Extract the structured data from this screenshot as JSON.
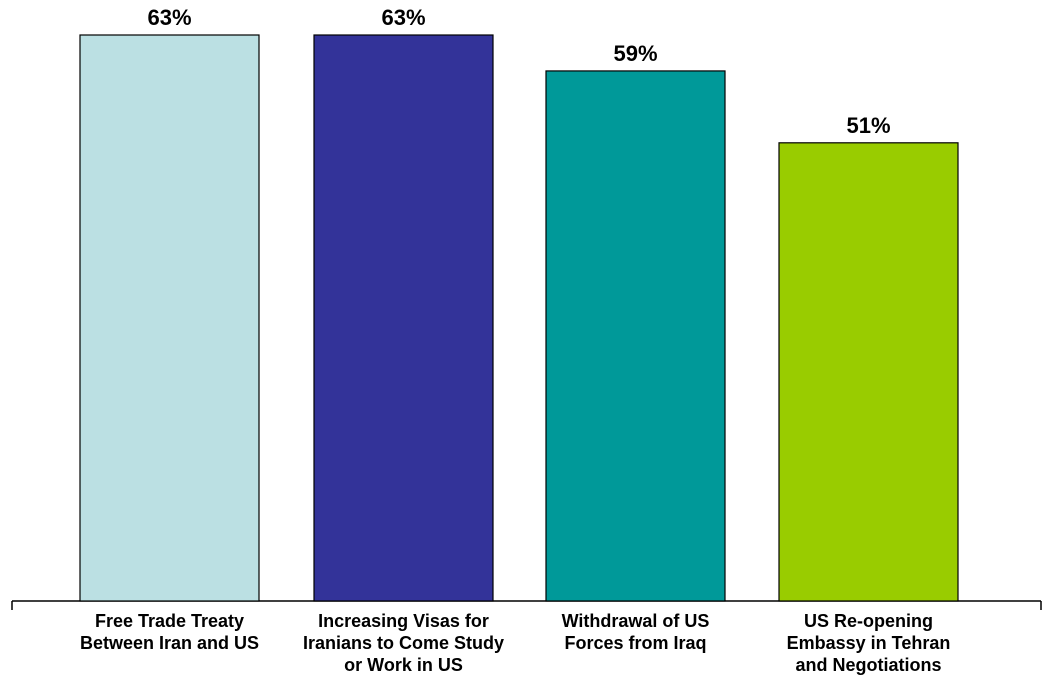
{
  "chart_data": {
    "type": "bar",
    "title": "",
    "xlabel": "",
    "ylabel": "",
    "ylim": [
      0,
      65
    ],
    "grid": false,
    "legend": false,
    "categories": [
      [
        "Free Trade Treaty",
        "Between Iran and US"
      ],
      [
        "Increasing Visas for",
        "Iranians to Come Study",
        "or Work in US"
      ],
      [
        "Withdrawal of US",
        "Forces from Iraq"
      ],
      [
        "US Re-opening",
        "Embassy in Tehran",
        "and Negotiations"
      ]
    ],
    "values": [
      63,
      63,
      59,
      51
    ],
    "value_labels": [
      "63%",
      "63%",
      "59%",
      "51%"
    ],
    "colors": [
      "#BBE0E3",
      "#333399",
      "#009999",
      "#99CC00"
    ]
  }
}
